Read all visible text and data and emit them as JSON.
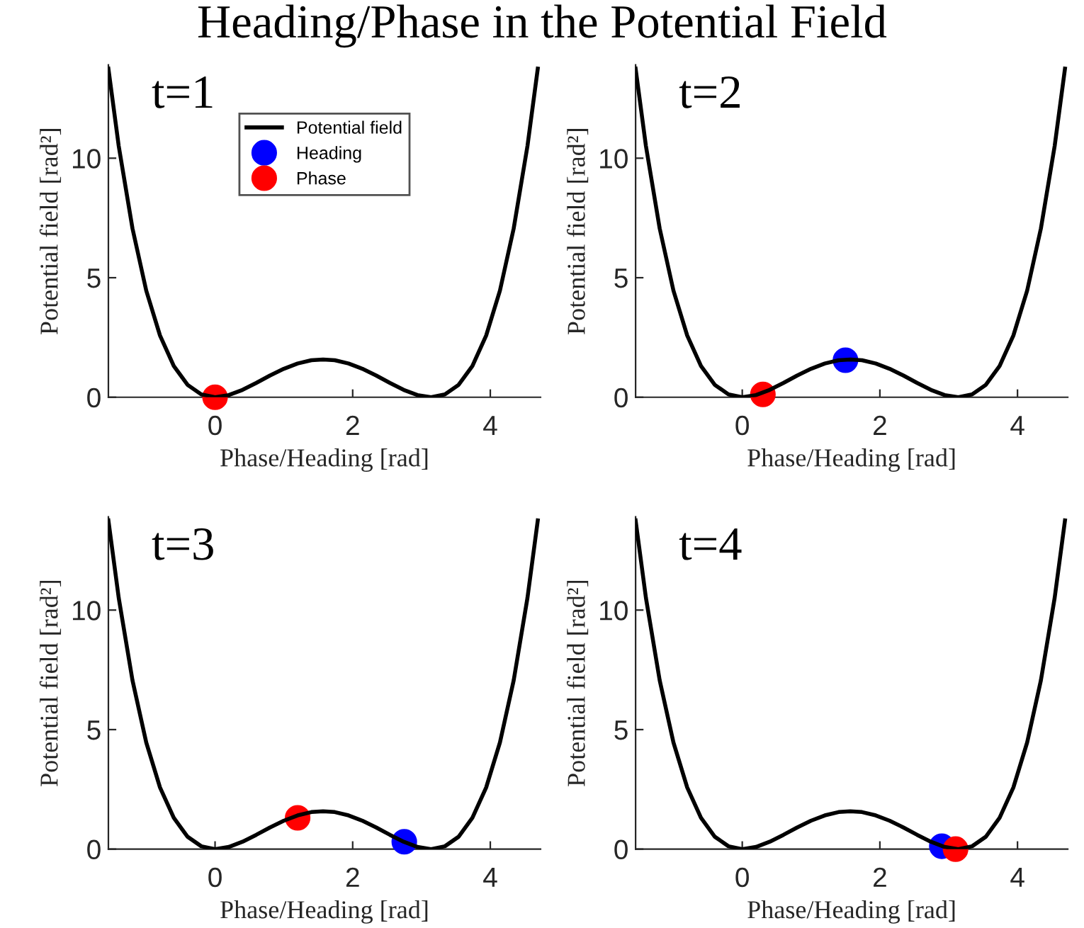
{
  "chart_data": [
    {
      "type": "line",
      "title": "Heading/Phase in the Potential Field",
      "xlabel": "Phase/Heading [rad]",
      "ylabel": "Potential field [rad²]",
      "annotations": [
        "t=1"
      ],
      "xlim": [
        -1.55,
        4.73
      ],
      "ylim": [
        0,
        13.9
      ],
      "xticks": [
        0,
        2,
        4
      ],
      "yticks": [
        0,
        5,
        10
      ],
      "grid": false,
      "legend": "top",
      "series": [
        {
          "name": "Potential field",
          "type": "line",
          "color": "#000000",
          "marker": "none",
          "line_style": "solid",
          "x": [
            -1.55,
            -1.4,
            -1.2,
            -1.0,
            -0.8,
            -0.6,
            -0.4,
            -0.2,
            0,
            0.2,
            0.4,
            0.6,
            0.8,
            1.0,
            1.2,
            1.4,
            1.57,
            1.74,
            1.94,
            2.14,
            2.34,
            2.54,
            2.74,
            2.94,
            3.14,
            3.34,
            3.54,
            3.74,
            3.94,
            4.14,
            4.34,
            4.54,
            4.69
          ],
          "values": [
            13.75,
            10.51,
            7.06,
            4.46,
            2.58,
            1.31,
            0.52,
            0.12,
            0,
            0.09,
            0.31,
            0.6,
            0.91,
            1.19,
            1.41,
            1.55,
            1.58,
            1.55,
            1.41,
            1.19,
            0.91,
            0.6,
            0.31,
            0.09,
            0,
            0.12,
            0.52,
            1.31,
            2.58,
            4.46,
            7.06,
            10.51,
            13.75
          ]
        },
        {
          "name": "Heading",
          "type": "scatter",
          "color": "#0000ff",
          "marker": "circle"
        },
        {
          "name": "Phase",
          "type": "scatter",
          "color": "#ff0000",
          "marker": "circle",
          "x": [
            0
          ],
          "values": [
            0
          ]
        }
      ]
    },
    {
      "type": "line",
      "xlabel": "Phase/Heading [rad]",
      "ylabel": "Potential field [rad²]",
      "annotations": [
        "t=2"
      ],
      "xlim": [
        -1.55,
        4.73
      ],
      "ylim": [
        0,
        13.9
      ],
      "xticks": [
        0,
        2,
        4
      ],
      "yticks": [
        0,
        5,
        10
      ],
      "grid": false,
      "legend": false,
      "series": [
        {
          "type": "line",
          "color": "#000000",
          "marker": "none",
          "line_style": "solid",
          "x": [
            -1.55,
            -1.4,
            -1.2,
            -1.0,
            -0.8,
            -0.6,
            -0.4,
            -0.2,
            0,
            0.2,
            0.4,
            0.6,
            0.8,
            1.0,
            1.2,
            1.4,
            1.57,
            1.74,
            1.94,
            2.14,
            2.34,
            2.54,
            2.74,
            2.94,
            3.14,
            3.34,
            3.54,
            3.74,
            3.94,
            4.14,
            4.34,
            4.54,
            4.69
          ],
          "values": [
            13.75,
            10.51,
            7.06,
            4.46,
            2.58,
            1.31,
            0.52,
            0.12,
            0,
            0.09,
            0.31,
            0.6,
            0.91,
            1.19,
            1.41,
            1.55,
            1.58,
            1.55,
            1.41,
            1.19,
            0.91,
            0.6,
            0.31,
            0.09,
            0,
            0.12,
            0.52,
            1.31,
            2.58,
            4.46,
            7.06,
            10.51,
            13.75
          ]
        },
        {
          "type": "scatter",
          "color": "#0000ff",
          "marker": "circle",
          "x": [
            1.5
          ],
          "values": [
            1.55
          ]
        },
        {
          "type": "scatter",
          "color": "#ff0000",
          "marker": "circle",
          "x": [
            0.3
          ],
          "values": [
            0.12
          ]
        }
      ]
    },
    {
      "type": "line",
      "xlabel": "Phase/Heading [rad]",
      "ylabel": "Potential field [rad²]",
      "annotations": [
        "t=3"
      ],
      "xlim": [
        -1.55,
        4.73
      ],
      "ylim": [
        0,
        13.9
      ],
      "xticks": [
        0,
        2,
        4
      ],
      "yticks": [
        0,
        5,
        10
      ],
      "grid": false,
      "legend": false,
      "series": [
        {
          "type": "line",
          "color": "#000000",
          "marker": "none",
          "line_style": "solid",
          "x": [
            -1.55,
            -1.4,
            -1.2,
            -1.0,
            -0.8,
            -0.6,
            -0.4,
            -0.2,
            0,
            0.2,
            0.4,
            0.6,
            0.8,
            1.0,
            1.2,
            1.4,
            1.57,
            1.74,
            1.94,
            2.14,
            2.34,
            2.54,
            2.74,
            2.94,
            3.14,
            3.34,
            3.54,
            3.74,
            3.94,
            4.14,
            4.34,
            4.54,
            4.69
          ],
          "values": [
            13.75,
            10.51,
            7.06,
            4.46,
            2.58,
            1.31,
            0.52,
            0.12,
            0,
            0.09,
            0.31,
            0.6,
            0.91,
            1.19,
            1.41,
            1.55,
            1.58,
            1.55,
            1.41,
            1.19,
            0.91,
            0.6,
            0.31,
            0.09,
            0,
            0.12,
            0.52,
            1.31,
            2.58,
            4.46,
            7.06,
            10.51,
            13.75
          ]
        },
        {
          "type": "scatter",
          "color": "#0000ff",
          "marker": "circle",
          "x": [
            2.75
          ],
          "values": [
            0.31
          ]
        },
        {
          "type": "scatter",
          "color": "#ff0000",
          "marker": "circle",
          "x": [
            1.2
          ],
          "values": [
            1.31
          ]
        }
      ]
    },
    {
      "type": "line",
      "xlabel": "Phase/Heading [rad]",
      "ylabel": "Potential field [rad²]",
      "annotations": [
        "t=4"
      ],
      "xlim": [
        -1.55,
        4.73
      ],
      "ylim": [
        0,
        13.9
      ],
      "xticks": [
        0,
        2,
        4
      ],
      "yticks": [
        0,
        5,
        10
      ],
      "grid": false,
      "legend": false,
      "series": [
        {
          "type": "line",
          "color": "#000000",
          "marker": "none",
          "line_style": "solid",
          "x": [
            -1.55,
            -1.4,
            -1.2,
            -1.0,
            -0.8,
            -0.6,
            -0.4,
            -0.2,
            0,
            0.2,
            0.4,
            0.6,
            0.8,
            1.0,
            1.2,
            1.4,
            1.57,
            1.74,
            1.94,
            2.14,
            2.34,
            2.54,
            2.74,
            2.94,
            3.14,
            3.34,
            3.54,
            3.74,
            3.94,
            4.14,
            4.34,
            4.54,
            4.69
          ],
          "values": [
            13.75,
            10.51,
            7.06,
            4.46,
            2.58,
            1.31,
            0.52,
            0.12,
            0,
            0.09,
            0.31,
            0.6,
            0.91,
            1.19,
            1.41,
            1.55,
            1.58,
            1.55,
            1.41,
            1.19,
            0.91,
            0.6,
            0.31,
            0.09,
            0,
            0.12,
            0.52,
            1.31,
            2.58,
            4.46,
            7.06,
            10.51,
            13.75
          ]
        },
        {
          "type": "scatter",
          "color": "#0000ff",
          "marker": "circle",
          "x": [
            2.9
          ],
          "values": [
            0.12
          ]
        },
        {
          "type": "scatter",
          "color": "#ff0000",
          "marker": "circle",
          "x": [
            3.1
          ],
          "values": [
            0
          ]
        }
      ]
    }
  ]
}
